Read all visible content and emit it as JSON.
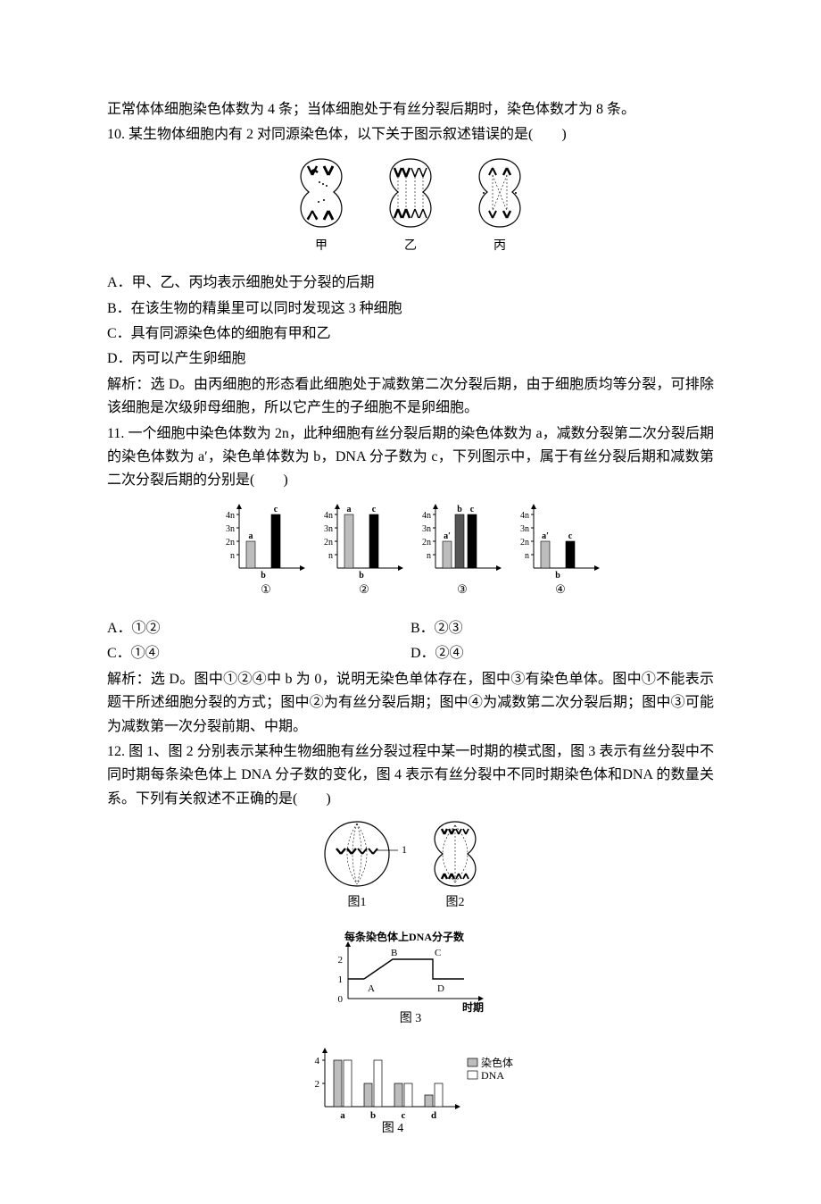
{
  "preamble_line": "正常体体细胞染色体数为 4 条；当体细胞处于有丝分裂后期时，染色体数才为 8 条。",
  "q10": {
    "stem": "10. 某生物体细胞内有 2 对同源染色体，以下关于图示叙述错误的是(　　)",
    "options": {
      "A": "A．甲、乙、丙均表示细胞处于分裂的后期",
      "B": "B．在该生物的精巢里可以同时发现这 3 种细胞",
      "C": "C．具有同源染色体的细胞有甲和乙",
      "D": "D．丙可以产生卵细胞"
    },
    "explain": "解析：选 D。由丙细胞的形态看此细胞处于减数第二次分裂后期，由于细胞质均等分裂，可排除该细胞是次级卵母细胞，所以它产生的子细胞不是卵细胞。",
    "figure_labels": {
      "a": "甲",
      "b": "乙",
      "c": "丙"
    }
  },
  "q11": {
    "stem": "11. 一个细胞中染色体数为 2n，此种细胞有丝分裂后期的染色体数为 a，减数分裂第二次分裂后期的染色体数为 a′，染色单体数为 b，DNA 分子数为 c，下列图示中，属于有丝分裂后期和减数第二次分裂后期的分别是(　　)",
    "options": {
      "A": "A．①②",
      "B": "B．②③",
      "C": "C．①④",
      "D": "D．②④"
    },
    "explain": "解析：选 D。图中①②④中 b 为 0，说明无染色单体存在，图中③有染色单体。图中①不能表示题干所述细胞分裂的方式；图中②为有丝分裂后期；图中④为减数第二次分裂后期；图中③可能为减数第一次分裂前期、中期。",
    "chart": {
      "type": "bar",
      "y_ticks": [
        "n",
        "2n",
        "3n",
        "4n"
      ],
      "bar_colors": {
        "a": "#bdbdbd",
        "b": "#555555",
        "c": "#000000"
      },
      "axis_color": "#000000",
      "panels": [
        {
          "label": "①",
          "a_label": "a",
          "values": {
            "a": 2,
            "b": 0,
            "c": 4
          }
        },
        {
          "label": "②",
          "a_label": "a",
          "values": {
            "a": 4,
            "b": 0,
            "c": 4
          }
        },
        {
          "label": "③",
          "a_label": "a′",
          "values": {
            "a": 2,
            "b": 4,
            "c": 4
          }
        },
        {
          "label": "④",
          "a_label": "a′",
          "values": {
            "a": 2,
            "b": 0,
            "c": 2
          }
        }
      ]
    }
  },
  "q12": {
    "stem": "12. 图 1、图 2 分别表示某种生物细胞有丝分裂过程中某一时期的模式图，图 3 表示有丝分裂中不同时期每条染色体上 DNA 分子数的变化，图 4 表示有丝分裂中不同时期染色体和DNA 的数量关系。下列有关叙述不正确的是(　　)",
    "fig12_labels": {
      "a": "图1",
      "b": "图2",
      "marker": "1"
    },
    "fig3": {
      "label": "图 3",
      "type": "line",
      "title": "每条染色体上DNA分子数",
      "y_ticks": [
        "0",
        "1",
        "2"
      ],
      "x_axis_label": "时期",
      "point_labels": [
        "A",
        "B",
        "C",
        "D"
      ],
      "axis_color": "#000000"
    },
    "fig4": {
      "label": "图 4",
      "type": "bar",
      "legend": {
        "chromosome": "染色体",
        "dna": "DNA"
      },
      "legend_colors": {
        "chromosome": "#bdbdbd",
        "dna": "#ffffff"
      },
      "y_ticks": [
        "2",
        "4"
      ],
      "x_labels": [
        "a",
        "b",
        "c",
        "d"
      ],
      "values": {
        "a": {
          "chromosome": 4,
          "dna": 4
        },
        "b": {
          "chromosome": 2,
          "dna": 4
        },
        "c": {
          "chromosome": 2,
          "dna": 2
        },
        "d": {
          "chromosome": 1,
          "dna": 2
        }
      },
      "axis_color": "#000000",
      "bar_stroke": "#000000"
    }
  }
}
